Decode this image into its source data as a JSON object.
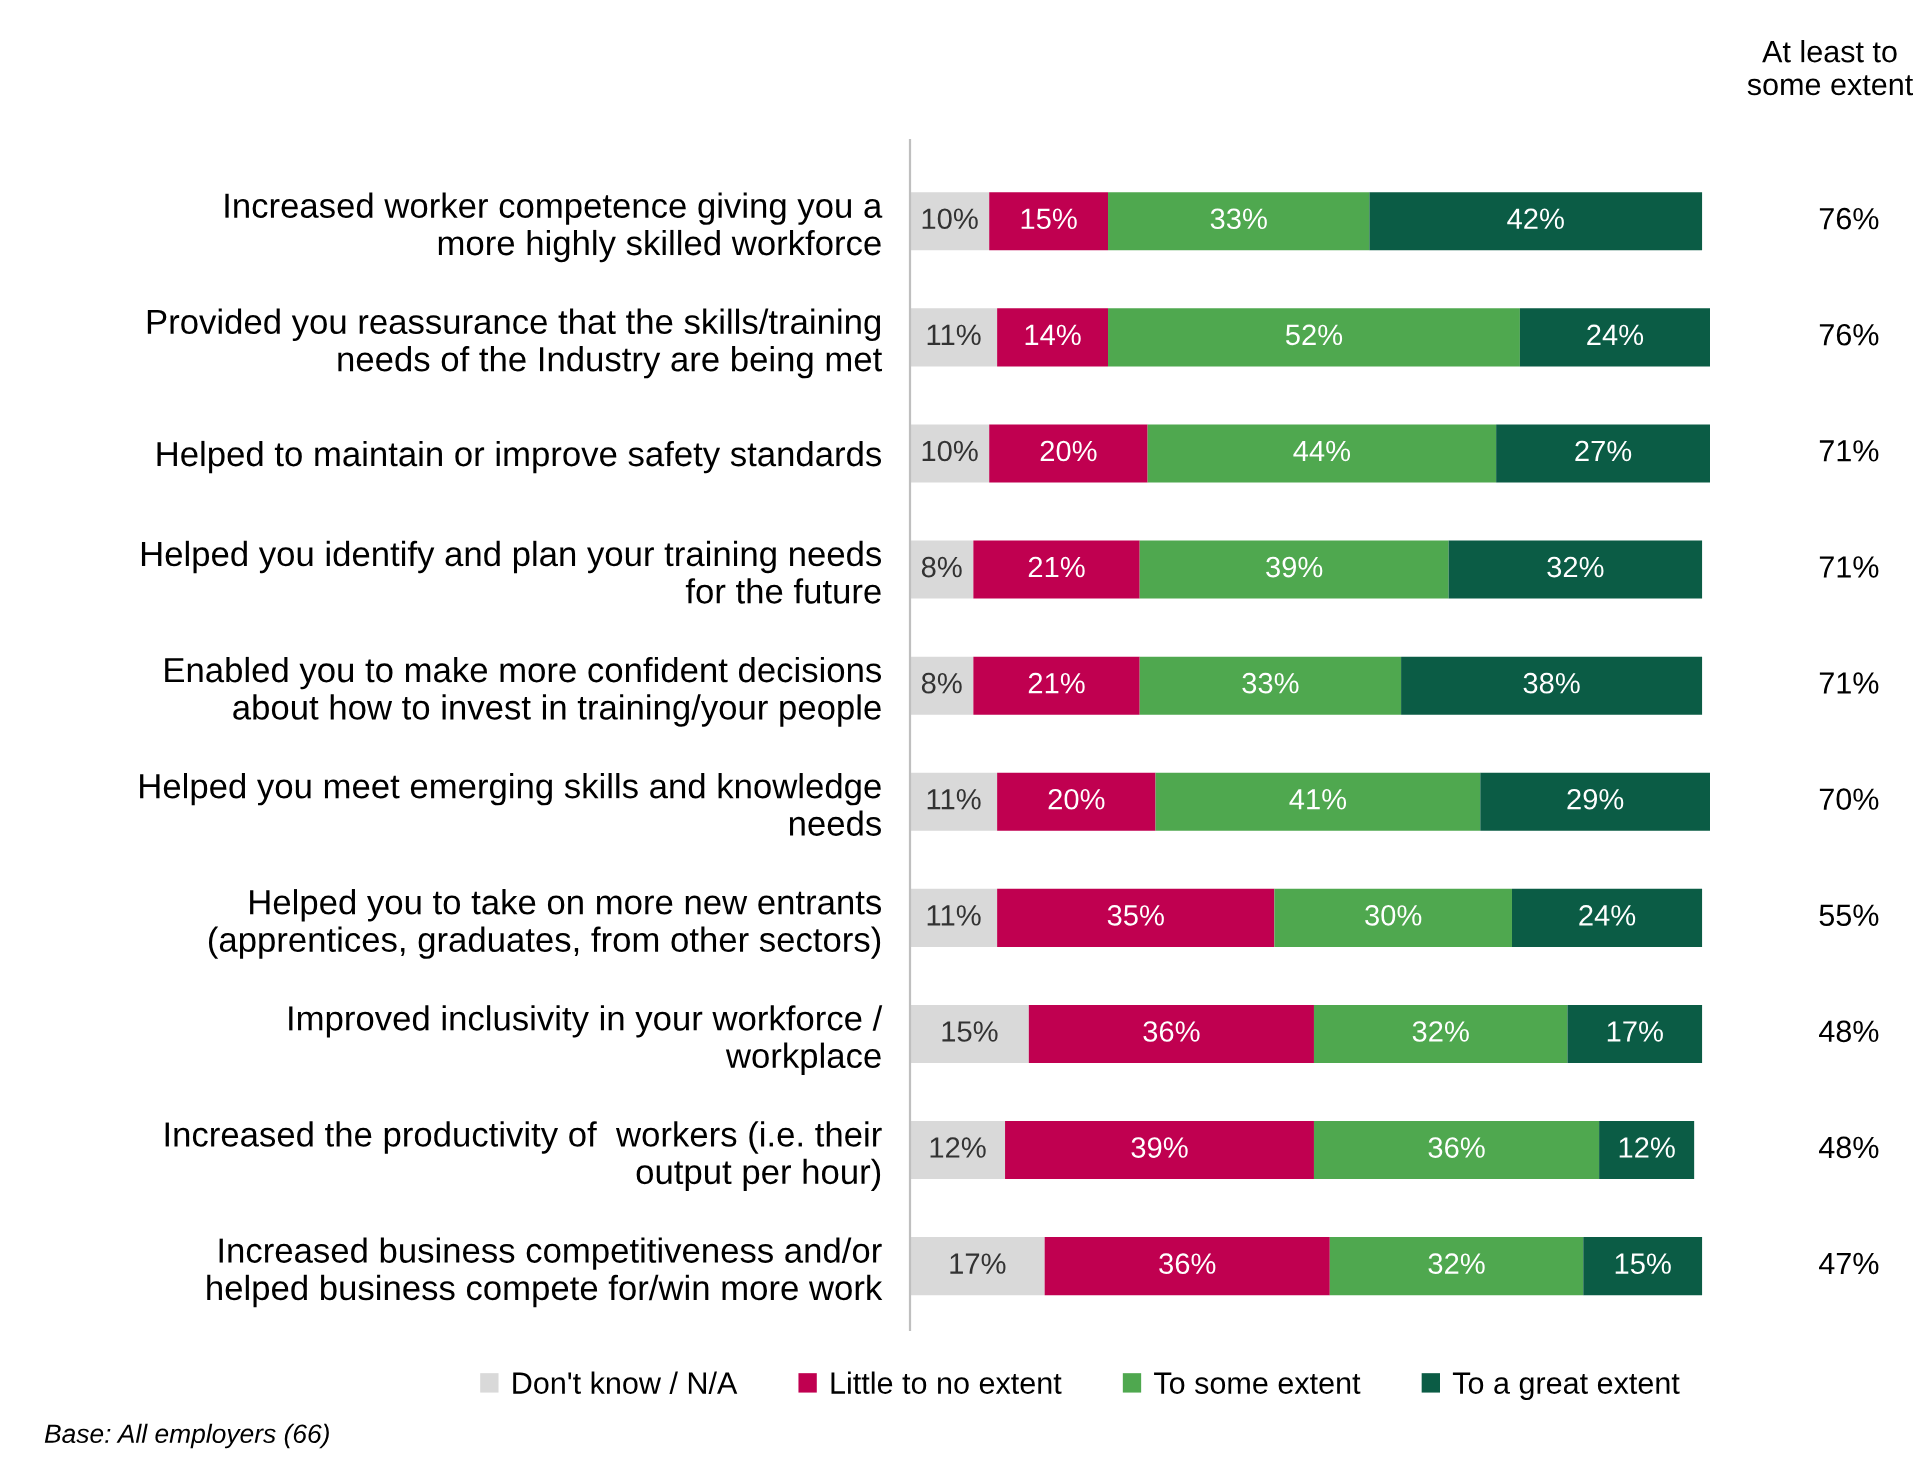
{
  "chart_data": {
    "type": "bar",
    "orientation": "horizontal",
    "stacked": true,
    "tick_labels": "y",
    "grid": false,
    "legend": "bottom",
    "categories": [
      "Increased worker competence giving you a\nmore highly skilled workforce",
      "Provided you reassurance that the skills/training\nneeds of the Industry are being met",
      "Helped to maintain or improve safety standards",
      "Helped you identify and plan your training needs\nfor the future",
      "Enabled you to make more confident decisions\nabout how to invest in training/your people",
      "Helped you meet emerging skills and knowledge\nneeds",
      "Helped you to take on more new entrants\n(apprentices, graduates, from other sectors)",
      "Improved inclusivity in your workforce /\nworkplace",
      "Increased the productivity of  workers (i.e. their\noutput per hour)",
      "Increased business competitiveness and/or\nhelped business compete for/win more work"
    ],
    "series": [
      {
        "name": "Don't know / N/A",
        "color": "#d9d9d9",
        "values": [
          10,
          11,
          10,
          8,
          8,
          11,
          11,
          15,
          12,
          17
        ],
        "value_labels": [
          "10%",
          "11%",
          "10%",
          "8%",
          "8%",
          "11%",
          "11%",
          "15%",
          "12%",
          "17%"
        ]
      },
      {
        "name": "Little to no extent",
        "color": "#c00050",
        "values": [
          15,
          14,
          20,
          21,
          21,
          20,
          35,
          36,
          39,
          36
        ],
        "value_labels": [
          "15%",
          "14%",
          "20%",
          "21%",
          "21%",
          "20%",
          "35%",
          "36%",
          "39%",
          "36%"
        ]
      },
      {
        "name": "To some extent",
        "color": "#4fa84f",
        "values": [
          33,
          52,
          44,
          39,
          33,
          41,
          30,
          32,
          36,
          32
        ],
        "value_labels": [
          "33%",
          "52%",
          "44%",
          "39%",
          "33%",
          "41%",
          "30%",
          "32%",
          "36%",
          "32%"
        ]
      },
      {
        "name": "To a great extent",
        "color": "#0b5c45",
        "values": [
          42,
          24,
          27,
          32,
          38,
          29,
          24,
          17,
          12,
          15
        ],
        "value_labels": [
          "42%",
          "24%",
          "27%",
          "32%",
          "38%",
          "29%",
          "24%",
          "17%",
          "12%",
          "15%"
        ]
      }
    ],
    "annotations": [
      "At least to\nsome extent",
      "76%",
      "76%",
      "71%",
      "71%",
      "71%",
      "70%",
      "55%",
      "48%",
      "48%",
      "47%",
      "Base: All employers (66)"
    ]
  }
}
